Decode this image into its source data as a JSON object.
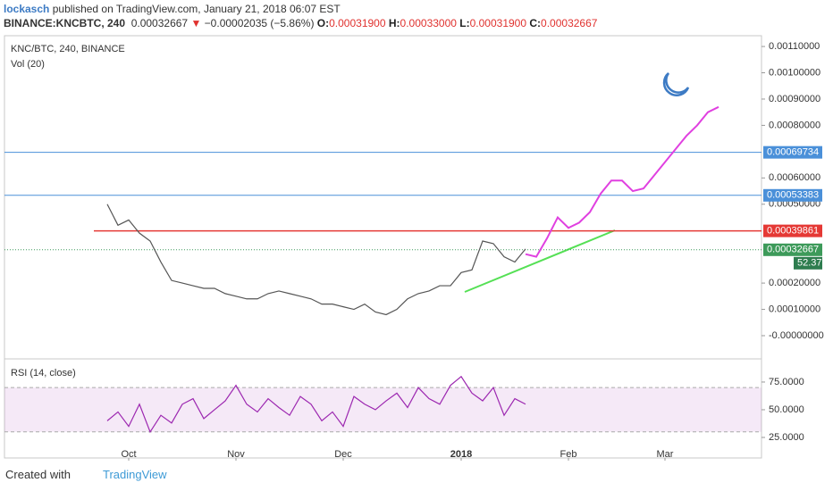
{
  "header": {
    "user": "lockasch",
    "published": "published on TradingView.com, January 21, 2018 06:07 EST",
    "symbol": "BINANCE:KNCBTC, 240",
    "last": "0.00032667",
    "change": "−0.00002035 (−5.86%)",
    "open_label": "O:",
    "open": "0.00031900",
    "high_label": "H:",
    "high": "0.00033000",
    "low_label": "L:",
    "low": "0.00031900",
    "close_label": "C:",
    "close": "0.00032667"
  },
  "chart_data": [
    {
      "type": "line",
      "title": "KNC/BTC, 240, BINANCE",
      "subtitle": "Vol (20)",
      "categories": [
        null,
        null,
        "Oct",
        null,
        null,
        null,
        null,
        null,
        null,
        null,
        null,
        null,
        "Nov",
        null,
        null,
        null,
        null,
        null,
        null,
        null,
        null,
        null,
        "Dec",
        null,
        null,
        null,
        null,
        null,
        null,
        null,
        null,
        null,
        null,
        "2018",
        null,
        null,
        null,
        null,
        null,
        null,
        null,
        null,
        null,
        "Feb",
        null,
        null,
        null,
        null,
        null,
        null,
        null,
        null,
        "Mar",
        null,
        null,
        null,
        null,
        null
      ],
      "series": [
        {
          "color": "#555555",
          "values": [
            0.0005,
            0.00042,
            0.00044,
            0.00039,
            0.00036,
            0.00028,
            0.00021,
            0.0002,
            0.00019,
            0.00018,
            0.00018,
            0.00016,
            0.00015,
            0.00014,
            0.00014,
            0.00016,
            0.00017,
            0.00016,
            0.00015,
            0.00014,
            0.00012,
            0.00012,
            0.00011,
            0.0001,
            0.00012,
            9e-05,
            8e-05,
            0.0001,
            0.00014,
            0.00016,
            0.00017,
            0.00019,
            0.00019,
            0.00024,
            0.00025,
            0.00036,
            0.00035,
            0.0003,
            0.00028,
            0.00033,
            null,
            null,
            null,
            null,
            null,
            null,
            null,
            null,
            null,
            null,
            null,
            null,
            null,
            null,
            null,
            null,
            null,
            null
          ]
        },
        {
          "color": "#e040e0",
          "values": [
            null,
            null,
            null,
            null,
            null,
            null,
            null,
            null,
            null,
            null,
            null,
            null,
            null,
            null,
            null,
            null,
            null,
            null,
            null,
            null,
            null,
            null,
            null,
            null,
            null,
            null,
            null,
            null,
            null,
            null,
            null,
            null,
            null,
            null,
            null,
            null,
            null,
            null,
            null,
            0.00031,
            0.0003,
            0.00037,
            0.00045,
            0.00041,
            0.00043,
            0.00047,
            0.00054,
            0.00059,
            0.00059,
            0.00055,
            0.00056,
            0.00061,
            0.00066,
            0.00071,
            0.00076,
            0.0008,
            0.00085,
            0.00087
          ]
        }
      ],
      "ylim": [
        -8.83e-05,
        0.001141
      ],
      "yticks": [
        {
          "value": 0.0011,
          "label": "0.00110000"
        },
        {
          "value": 0.001,
          "label": "0.00100000"
        },
        {
          "value": 0.0009,
          "label": "0.00090000"
        },
        {
          "value": 0.0008,
          "label": "0.00080000"
        },
        {
          "value": 0.0006,
          "label": "0.00060000"
        },
        {
          "value": 0.0005,
          "label": "0.00050000"
        },
        {
          "value": 0.0002,
          "label": "0.00020000"
        },
        {
          "value": 0.0001,
          "label": "0.00010000"
        },
        {
          "value": 0,
          "label": "-0.00000000"
        }
      ],
      "levels": [
        {
          "value": 0.00069734,
          "color": "#4a90d9"
        },
        {
          "value": 0.00053383,
          "color": "#4a90d9"
        },
        {
          "value": 0.00039861,
          "color": "#e53935"
        },
        {
          "value": 0.00032667,
          "color": "#3d9a5a"
        }
      ],
      "volume_last": 52.37
    },
    {
      "type": "line",
      "title": "RSI (14, close)",
      "series": [
        {
          "color": "#9c27b0",
          "values": [
            40,
            48,
            35,
            55,
            30,
            45,
            38,
            55,
            60,
            42,
            50,
            58,
            72,
            55,
            48,
            60,
            52,
            45,
            62,
            55,
            40,
            48,
            35,
            62,
            55,
            50,
            58,
            65,
            52,
            70,
            60,
            55,
            72,
            80,
            65,
            58,
            70,
            45,
            60,
            55,
            null,
            null,
            null,
            null,
            null,
            null,
            null,
            null,
            null,
            null,
            null,
            null,
            null,
            null,
            null,
            null,
            null,
            null
          ]
        }
      ],
      "ylim": [
        12.9,
        93.5
      ],
      "yticks": [
        {
          "value": 75,
          "label": "75.0000"
        },
        {
          "value": 50,
          "label": "50.0000"
        },
        {
          "value": 25,
          "label": "25.0000"
        }
      ],
      "band": [
        30,
        70
      ]
    }
  ],
  "footer": {
    "created": "Created with",
    "brand": "TradingView"
  }
}
